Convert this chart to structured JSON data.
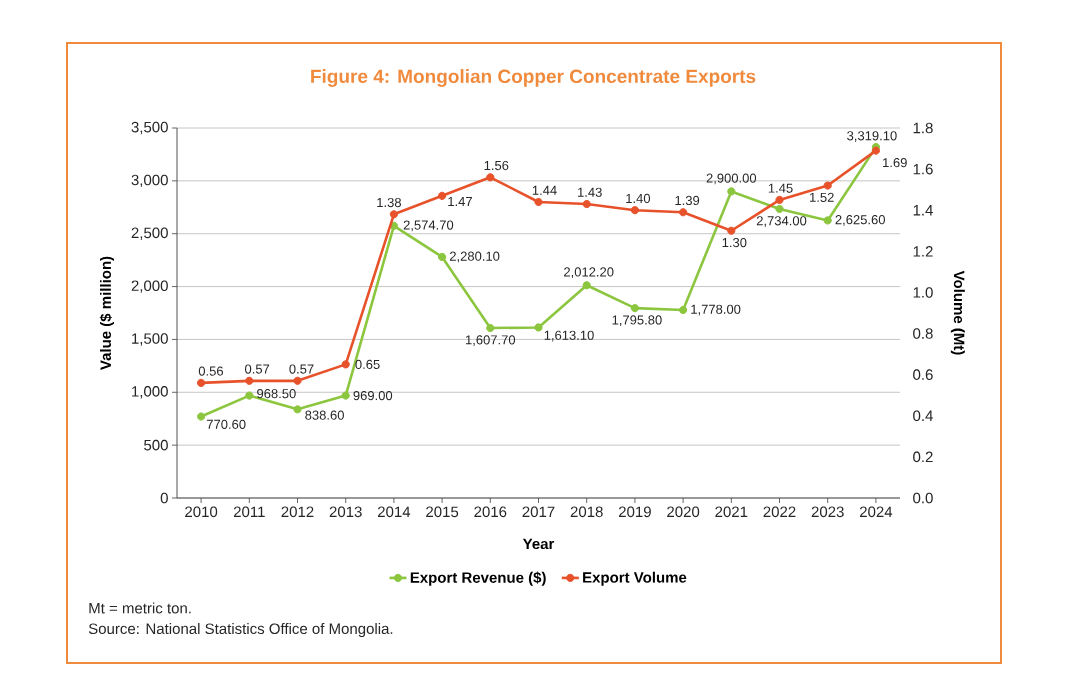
{
  "chart_data": {
    "type": "line",
    "title": "Figure 4: Mongolian Copper Concentrate Exports",
    "xlabel": "Year",
    "ylabel": "Value ($ million)",
    "y2label": "Volume (Mt)",
    "categories": [
      "2010",
      "2011",
      "2012",
      "2013",
      "2014",
      "2015",
      "2016",
      "2017",
      "2018",
      "2019",
      "2020",
      "2021",
      "2022",
      "2023",
      "2024"
    ],
    "series": [
      {
        "name": "Export Revenue ($)",
        "color": "#8cc63f",
        "values": [
          770.6,
          968.5,
          838.6,
          969.0,
          2574.7,
          2280.1,
          1607.7,
          1613.1,
          2012.2,
          1795.8,
          1778.0,
          2900.0,
          2734.0,
          2625.6,
          3319.1
        ],
        "value_labels": [
          "770.60",
          "968.50",
          "838.60",
          "969.00",
          "2,574.70",
          "2,280.10",
          "1,607.70",
          "1,613.10",
          "2,012.20",
          "1,795.80",
          "1,778.00",
          "2,900.00",
          "2,734.00",
          "2,625.60",
          "3,319.10"
        ]
      },
      {
        "name": "Export Volume",
        "color": "#e8522b",
        "axis": "y2",
        "values": [
          0.56,
          0.57,
          0.57,
          0.65,
          1.38,
          1.47,
          1.56,
          1.44,
          1.43,
          1.4,
          1.39,
          1.3,
          1.45,
          1.52,
          1.69
        ],
        "value_labels": [
          "0.56",
          "0.57",
          "0.57",
          "0.65",
          "1.38",
          "1.47",
          "1.56",
          "1.44",
          "1.43",
          "1.40",
          "1.39",
          "1.30",
          "1.45",
          "1.52",
          "1.69"
        ]
      }
    ],
    "ylim": [
      0,
      3500
    ],
    "yticks": [
      0,
      500,
      {
        "value": 1000,
        "label": "1,000"
      },
      {
        "value": 1500,
        "label": "1,500"
      },
      {
        "value": 2000,
        "label": "2,000"
      },
      {
        "value": 2500,
        "label": "2,500"
      },
      {
        "value": 3000,
        "label": "3,000"
      },
      {
        "value": 3500,
        "label": "3,500"
      }
    ],
    "y2lim": [
      0,
      1.8
    ],
    "y2ticks": [
      {
        "value": 0,
        "label": "0.0"
      },
      0.2,
      0.4,
      0.6,
      0.8,
      {
        "value": 1,
        "label": "1.0"
      },
      1.2,
      1.4,
      1.6,
      1.8
    ],
    "grid": "y",
    "legend": "bottom",
    "marker": "circle",
    "annotations": [
      "Mt = metric ton.",
      "Source: National Statistics Office of Mongolia."
    ]
  }
}
